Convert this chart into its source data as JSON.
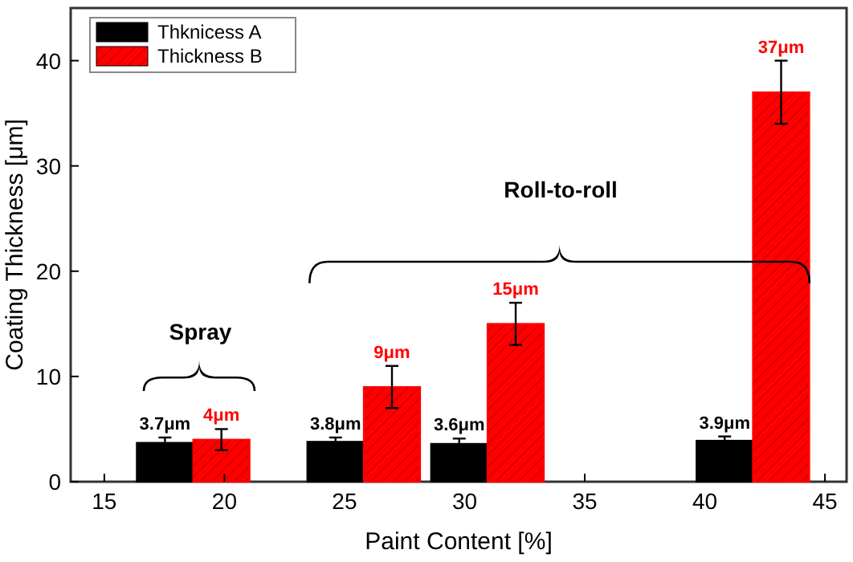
{
  "chart_data": {
    "type": "bar",
    "xlabel": "Paint Content [%]",
    "ylabel": "Coating Thickness [μm]",
    "x": [
      18.7,
      25.8,
      30.95,
      42
    ],
    "series": [
      {
        "name": "Thknicess A",
        "color": "#000000",
        "values": [
          3.7,
          3.8,
          3.6,
          3.9
        ],
        "errors": [
          0.5,
          0.4,
          0.5,
          0.4
        ],
        "value_labels": [
          "3.7μm",
          "3.8μm",
          "3.6μm",
          "3.9μm"
        ]
      },
      {
        "name": "Thickness B",
        "color": "#ff0000",
        "values": [
          4,
          9,
          15,
          37
        ],
        "errors": [
          1,
          2,
          2,
          3
        ],
        "value_labels": [
          "4μm",
          "9μm",
          "15μm",
          "37μm"
        ]
      }
    ],
    "xlim": [
      13.6,
      45.9
    ],
    "xticks": [
      15,
      20,
      25,
      30,
      35,
      40,
      45
    ],
    "ylim": [
      0,
      45
    ],
    "yticks": [
      0,
      10,
      20,
      30,
      40
    ],
    "annotations": [
      "Spray",
      "Roll-to-roll"
    ],
    "legend": "top left",
    "grid": false
  }
}
